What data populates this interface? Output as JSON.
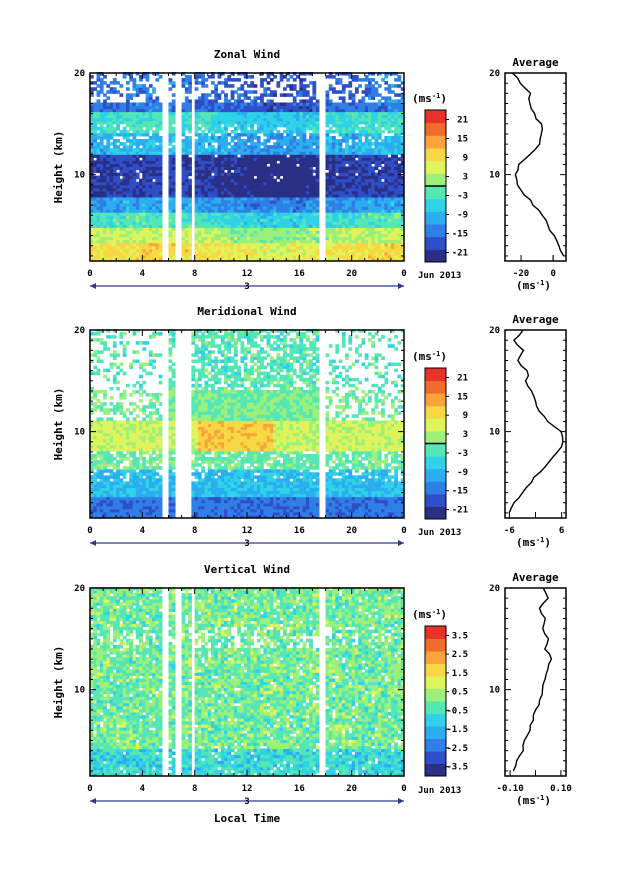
{
  "colors": {
    "scale": [
      "#2b2f86",
      "#2f4fc9",
      "#2f7fe6",
      "#2aaef0",
      "#2fd2e6",
      "#55e6b6",
      "#9af07a",
      "#dff45a",
      "#f7d844",
      "#f7a53a",
      "#f36a2e",
      "#e8322a"
    ],
    "frame": "#000000",
    "time_arrow": "#2a3a8a"
  },
  "xaxis": {
    "ticks": [
      "0",
      "4",
      "8",
      "12",
      "16",
      "20",
      "0"
    ],
    "day_label": "3",
    "month_label": "Jun 2013",
    "title": "Local Time"
  },
  "chart_data": [
    {
      "type": "heatmap",
      "title": "Zonal Wind",
      "ylabel": "Height (km)",
      "x_range": [
        0,
        24
      ],
      "ylim": [
        1.5,
        20
      ],
      "y_ticks": [
        "10",
        "20"
      ],
      "data_gaps_hours": [
        [
          5.4,
          5.8
        ],
        [
          6.5,
          6.8
        ],
        [
          7.6,
          8.0
        ],
        [
          17.5,
          17.8
        ],
        [
          22.8,
          23.0
        ]
      ],
      "colorbar": {
        "unit_label": "(ms",
        "unit_sup": "-1",
        "unit_close": ")",
        "ticks": [
          "21",
          "15",
          "9",
          "3",
          "-3",
          "-9",
          "-15",
          "-21"
        ],
        "range": [
          -24,
          24
        ],
        "zero_line": true
      },
      "profile": {
        "title": "Average",
        "x_ticks": [
          "-20",
          "0"
        ],
        "xlim": [
          -30,
          8
        ],
        "unit_label": "(ms",
        "unit_sup": "-1",
        "unit_close": ")",
        "y_ticks": [
          "10",
          "20"
        ],
        "heights_km": [
          2,
          3,
          4,
          5,
          6,
          7,
          8,
          9,
          10,
          11,
          12,
          13,
          14,
          15,
          16,
          17,
          18,
          19,
          20
        ],
        "values": [
          6,
          3,
          0,
          -3,
          -7,
          -12,
          -18,
          -22,
          -23,
          -21,
          -15,
          -8,
          -7,
          -8,
          -12,
          -15,
          -14,
          -20,
          -26
        ]
      }
    },
    {
      "type": "heatmap",
      "title": "Meridional Wind",
      "ylabel": "Height (km)",
      "x_range": [
        0,
        24
      ],
      "ylim": [
        1.5,
        20
      ],
      "y_ticks": [
        "10",
        "20"
      ],
      "data_gaps_hours": [
        [
          5.4,
          5.8
        ],
        [
          6.5,
          7.7
        ],
        [
          17.5,
          17.8
        ],
        [
          22.8,
          23.0
        ]
      ],
      "colorbar": {
        "unit_label": "(ms",
        "unit_sup": "-1",
        "unit_close": ")",
        "ticks": [
          "21",
          "15",
          "9",
          "3",
          "-3",
          "-9",
          "-15",
          "-21"
        ],
        "range": [
          -24,
          24
        ],
        "zero_line": true
      },
      "profile": {
        "title": "Average",
        "x_ticks": [
          "-6",
          "6"
        ],
        "xlim": [
          -7,
          7
        ],
        "unit_label": "(ms",
        "unit_sup": "-1",
        "unit_close": ")",
        "y_ticks": [
          "10",
          "20"
        ],
        "heights_km": [
          2,
          3,
          4,
          5,
          6,
          7,
          8,
          9,
          10,
          11,
          12,
          13,
          14,
          15,
          16,
          17,
          18,
          19,
          20
        ],
        "values": [
          -6,
          -5,
          -3,
          -1,
          1,
          3,
          5,
          6.5,
          6,
          3,
          1,
          0,
          -1,
          -2,
          -2,
          -4,
          -3,
          -5,
          -3
        ]
      }
    },
    {
      "type": "heatmap",
      "title": "Vertical Wind",
      "ylabel": "Height (km)",
      "x_range": [
        0,
        24
      ],
      "ylim": [
        1.5,
        20
      ],
      "y_ticks": [
        "10",
        "20"
      ],
      "data_gaps_hours": [
        [
          5.4,
          5.8
        ],
        [
          6.5,
          6.8
        ],
        [
          7.6,
          8.0
        ],
        [
          17.5,
          17.8
        ],
        [
          22.8,
          23.0
        ]
      ],
      "colorbar": {
        "unit_label": "(ms",
        "unit_sup": "-1",
        "unit_close": ")",
        "ticks": [
          "3.5",
          "2.5",
          "1.5",
          "0.5",
          "-0.5",
          "-1.5",
          "-2.5",
          "-3.5"
        ],
        "range": [
          -4,
          4
        ],
        "zero_line": false
      },
      "profile": {
        "title": "Average",
        "x_ticks": [
          "-0.10",
          "0.10"
        ],
        "xlim": [
          -0.12,
          0.12
        ],
        "unit_label": "(ms",
        "unit_sup": "-1",
        "unit_close": ")",
        "y_ticks": [
          "10",
          "20"
        ],
        "heights_km": [
          2,
          3,
          4,
          5,
          6,
          7,
          8,
          9,
          10,
          11,
          12,
          13,
          14,
          15,
          16,
          17,
          18,
          19,
          20
        ],
        "values": [
          -0.09,
          -0.07,
          -0.05,
          -0.04,
          -0.02,
          -0.01,
          0.0,
          0.02,
          0.03,
          0.04,
          0.05,
          0.06,
          0.04,
          0.05,
          0.03,
          0.04,
          0.02,
          0.05,
          0.03
        ]
      }
    }
  ]
}
